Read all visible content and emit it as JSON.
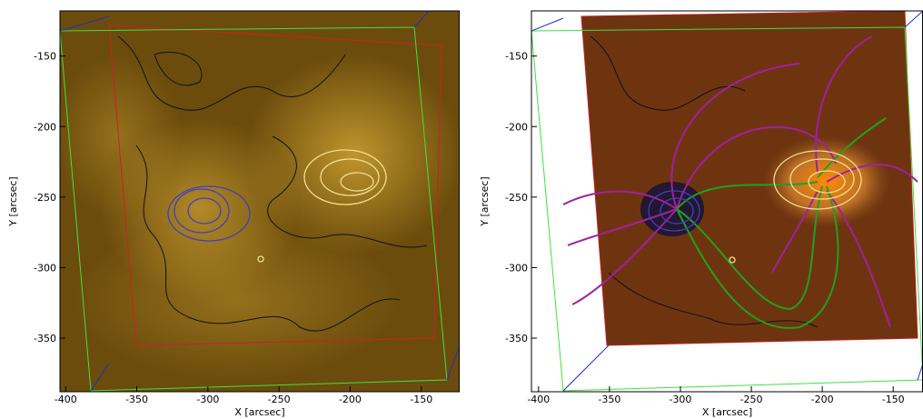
{
  "chart_data": [
    {
      "type": "image",
      "xlabel": "X [arcsec]",
      "ylabel": "Y [arcsec]",
      "xlim": [
        -404,
        -123
      ],
      "ylim": [
        -388,
        -118
      ],
      "xticks": [
        -400,
        -350,
        -300,
        -250,
        -200,
        -150
      ],
      "yticks": [
        -150,
        -200,
        -250,
        -300,
        -350
      ]
    },
    {
      "type": "image",
      "xlabel": "X [arcsec]",
      "ylabel": "Y [arcsec]",
      "xlim": [
        -405,
        -129
      ],
      "ylim": [
        -388,
        -118
      ],
      "xticks": [
        -400,
        -350,
        -300,
        -250,
        -200,
        -150
      ],
      "yticks": [
        -150,
        -200,
        -250,
        -300,
        -350
      ]
    }
  ]
}
